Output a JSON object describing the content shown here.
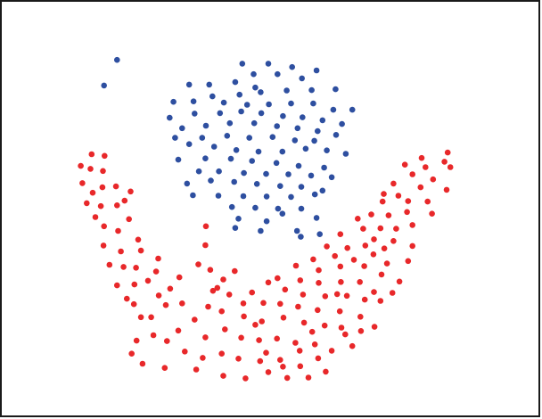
{
  "chart_data": {
    "type": "scatter",
    "title": "",
    "xlabel": "",
    "ylabel": "",
    "xlim": [
      0,
      100
    ],
    "ylim": [
      0,
      100
    ],
    "grid": false,
    "legend": "none",
    "series": [
      {
        "color": "#2e4fa0",
        "points": [
          [
            21.6,
            85.7
          ],
          [
            19.2,
            79.6
          ],
          [
            44.7,
            84.8
          ],
          [
            49.5,
            84.8
          ],
          [
            53.9,
            84.0
          ],
          [
            58.4,
            83.2
          ],
          [
            46.8,
            82.3
          ],
          [
            51.2,
            82.3
          ],
          [
            34.9,
            79.8
          ],
          [
            38.6,
            79.8
          ],
          [
            43.4,
            80.4
          ],
          [
            47.1,
            79.1
          ],
          [
            55.7,
            81.3
          ],
          [
            61.9,
            78.7
          ],
          [
            57.5,
            78.5
          ],
          [
            52.9,
            78.4
          ],
          [
            48.1,
            78.0
          ],
          [
            44.2,
            77.4
          ],
          [
            39.2,
            77.0
          ],
          [
            35.7,
            75.8
          ],
          [
            32.0,
            75.7
          ],
          [
            65.0,
            73.8
          ],
          [
            41.3,
            75.5
          ],
          [
            45.6,
            75.0
          ],
          [
            49.6,
            75.1
          ],
          [
            53.7,
            75.3
          ],
          [
            57.8,
            75.3
          ],
          [
            61.5,
            73.8
          ],
          [
            31.3,
            71.9
          ],
          [
            35.9,
            72.9
          ],
          [
            40.6,
            73.0
          ],
          [
            44.5,
            73.4
          ],
          [
            48.2,
            73.0
          ],
          [
            52.2,
            72.3
          ],
          [
            55.8,
            72.0
          ],
          [
            59.5,
            71.3
          ],
          [
            63.1,
            70.4
          ],
          [
            33.6,
            69.4
          ],
          [
            38.0,
            70.0
          ],
          [
            42.4,
            70.6
          ],
          [
            46.9,
            70.6
          ],
          [
            51.1,
            69.9
          ],
          [
            54.9,
            69.4
          ],
          [
            58.6,
            68.7
          ],
          [
            32.3,
            67.1
          ],
          [
            37.3,
            67.1
          ],
          [
            41.9,
            67.6
          ],
          [
            46.0,
            67.1
          ],
          [
            50.3,
            67.3
          ],
          [
            54.4,
            66.5
          ],
          [
            58.0,
            66.4
          ],
          [
            62.0,
            67.8
          ],
          [
            39.5,
            65.0
          ],
          [
            43.6,
            64.2
          ],
          [
            47.7,
            63.8
          ],
          [
            52.1,
            63.8
          ],
          [
            56.4,
            64.5
          ],
          [
            60.3,
            64.1
          ],
          [
            63.8,
            63.3
          ],
          [
            34.9,
            65.6
          ],
          [
            32.9,
            61.9
          ],
          [
            37.9,
            62.2
          ],
          [
            42.6,
            62.1
          ],
          [
            46.5,
            61.6
          ],
          [
            51.0,
            61.1
          ],
          [
            55.1,
            60.4
          ],
          [
            59.8,
            60.0
          ],
          [
            36.7,
            59.1
          ],
          [
            40.4,
            59.1
          ],
          [
            45.0,
            58.7
          ],
          [
            49.1,
            58.5
          ],
          [
            53.2,
            58.4
          ],
          [
            57.4,
            58.1
          ],
          [
            61.2,
            57.7
          ],
          [
            34.5,
            56.2
          ],
          [
            38.9,
            56.9
          ],
          [
            43.2,
            56.6
          ],
          [
            47.4,
            56.1
          ],
          [
            51.7,
            55.6
          ],
          [
            55.6,
            55.4
          ],
          [
            59.5,
            54.5
          ],
          [
            35.6,
            53.4
          ],
          [
            40.3,
            53.3
          ],
          [
            44.9,
            53.2
          ],
          [
            49.2,
            53.1
          ],
          [
            53.7,
            53.0
          ],
          [
            58.1,
            53.6
          ],
          [
            42.8,
            50.6
          ],
          [
            47.1,
            50.4
          ],
          [
            51.3,
            50.2
          ],
          [
            55.6,
            50.2
          ],
          [
            58.4,
            48.0
          ],
          [
            44.0,
            47.8
          ],
          [
            49.2,
            47.2
          ],
          [
            52.1,
            49.0
          ],
          [
            48.1,
            44.9
          ],
          [
            43.4,
            45.6
          ],
          [
            54.8,
            44.9
          ],
          [
            59.0,
            44.1
          ],
          [
            55.5,
            43.5
          ]
        ]
      },
      {
        "color": "#e8282a",
        "points": [
          [
            82.6,
            63.6
          ],
          [
            82.0,
            61.4
          ],
          [
            77.8,
            62.3
          ],
          [
            83.1,
            60.1
          ],
          [
            78.5,
            60.1
          ],
          [
            74.7,
            60.7
          ],
          [
            76.1,
            58.4
          ],
          [
            79.9,
            57.2
          ],
          [
            82.4,
            54.7
          ],
          [
            77.6,
            55.3
          ],
          [
            72.6,
            56.2
          ],
          [
            70.8,
            53.7
          ],
          [
            73.5,
            53.3
          ],
          [
            75.3,
            52.0
          ],
          [
            70.6,
            51.9
          ],
          [
            78.9,
            51.9
          ],
          [
            79.7,
            49.0
          ],
          [
            75.1,
            49.4
          ],
          [
            71.7,
            48.6
          ],
          [
            66.0,
            47.8
          ],
          [
            68.5,
            48.8
          ],
          [
            67.0,
            45.4
          ],
          [
            70.2,
            45.5
          ],
          [
            76.1,
            46.3
          ],
          [
            73.1,
            45.4
          ],
          [
            62.8,
            44.1
          ],
          [
            69.0,
            42.9
          ],
          [
            72.6,
            42.5
          ],
          [
            64.1,
            40.8
          ],
          [
            67.4,
            41.4
          ],
          [
            76.1,
            41.3
          ],
          [
            60.3,
            41.2
          ],
          [
            57.8,
            38.1
          ],
          [
            61.8,
            38.9
          ],
          [
            65.3,
            38.0
          ],
          [
            68.9,
            39.3
          ],
          [
            75.3,
            37.7
          ],
          [
            71.4,
            37.1
          ],
          [
            54.6,
            36.6
          ],
          [
            58.8,
            35.5
          ],
          [
            62.8,
            36.4
          ],
          [
            67.2,
            36.5
          ],
          [
            70.4,
            34.5
          ],
          [
            51.2,
            33.6
          ],
          [
            55.4,
            33.1
          ],
          [
            58.8,
            32.5
          ],
          [
            62.9,
            32.7
          ],
          [
            66.4,
            32.7
          ],
          [
            69.0,
            30.3
          ],
          [
            46.5,
            30.2
          ],
          [
            49.5,
            32.6
          ],
          [
            52.6,
            30.9
          ],
          [
            55.9,
            29.7
          ],
          [
            60.0,
            29.3
          ],
          [
            64.0,
            29.4
          ],
          [
            67.3,
            28.5
          ],
          [
            41.2,
            33.3
          ],
          [
            44.9,
            27.6
          ],
          [
            48.6,
            27.7
          ],
          [
            51.7,
            27.5
          ],
          [
            55.0,
            26.8
          ],
          [
            58.6,
            26.0
          ],
          [
            62.7,
            25.7
          ],
          [
            39.3,
            30.6
          ],
          [
            42.3,
            29.7
          ],
          [
            40.9,
            25.7
          ],
          [
            45.0,
            24.5
          ],
          [
            48.3,
            23.3
          ],
          [
            52.3,
            24.2
          ],
          [
            56.1,
            23.0
          ],
          [
            59.9,
            22.3
          ],
          [
            63.0,
            21.8
          ],
          [
            66.5,
            24.4
          ],
          [
            38.4,
            26.8
          ],
          [
            35.9,
            23.7
          ],
          [
            37.9,
            19.5
          ],
          [
            41.5,
            21.4
          ],
          [
            44.5,
            19.4
          ],
          [
            47.8,
            18.8
          ],
          [
            51.1,
            19.2
          ],
          [
            54.5,
            18.2
          ],
          [
            58.1,
            17.8
          ],
          [
            61.2,
            16.3
          ],
          [
            33.6,
            27.6
          ],
          [
            32.9,
            21.1
          ],
          [
            30.8,
            18.6
          ],
          [
            34.1,
            16.1
          ],
          [
            37.4,
            14.6
          ],
          [
            40.9,
            15.6
          ],
          [
            44.0,
            14.4
          ],
          [
            48.0,
            13.8
          ],
          [
            51.7,
            14.1
          ],
          [
            55.4,
            12.6
          ],
          [
            58.7,
            14.5
          ],
          [
            36.2,
            11.8
          ],
          [
            41.2,
            10.3
          ],
          [
            45.3,
            9.7
          ],
          [
            49.5,
            11.2
          ],
          [
            53.0,
            9.8
          ],
          [
            56.9,
            9.9
          ],
          [
            60.1,
            11.3
          ],
          [
            30.4,
            12.2
          ],
          [
            26.3,
            13.2
          ],
          [
            24.3,
            15.6
          ],
          [
            25.2,
            18.7
          ],
          [
            28.3,
            20.0
          ],
          [
            27.9,
            24.3
          ],
          [
            26.0,
            24.3
          ],
          [
            30.6,
            27.2
          ],
          [
            24.7,
            27.4
          ],
          [
            23.4,
            28.7
          ],
          [
            29.3,
            29.5
          ],
          [
            31.4,
            31.1
          ],
          [
            33.1,
            33.8
          ],
          [
            27.3,
            33.0
          ],
          [
            24.8,
            32.1
          ],
          [
            21.6,
            31.9
          ],
          [
            28.8,
            35.2
          ],
          [
            29.2,
            38.3
          ],
          [
            25.1,
            36.1
          ],
          [
            22.8,
            36.3
          ],
          [
            20.2,
            36.8
          ],
          [
            26.0,
            40.2
          ],
          [
            25.5,
            42.8
          ],
          [
            22.3,
            40.0
          ],
          [
            21.8,
            44.9
          ],
          [
            19.1,
            41.4
          ],
          [
            19.2,
            46.0
          ],
          [
            17.6,
            48.2
          ],
          [
            18.6,
            50.8
          ],
          [
            21.6,
            51.0
          ],
          [
            23.8,
            47.7
          ],
          [
            16.0,
            51.5
          ],
          [
            17.1,
            54.0
          ],
          [
            18.9,
            55.3
          ],
          [
            15.2,
            56.3
          ],
          [
            19.0,
            59.2
          ],
          [
            21.4,
            55.5
          ],
          [
            23.0,
            52.1
          ],
          [
            24.1,
            54.3
          ],
          [
            16.7,
            59.7
          ],
          [
            19.3,
            62.8
          ],
          [
            16.9,
            63.2
          ],
          [
            14.9,
            60.4
          ],
          [
            36.6,
            36.9
          ],
          [
            38.8,
            35.6
          ],
          [
            40.1,
            31.3
          ],
          [
            43.3,
            35.3
          ],
          [
            37.9,
            41.5
          ],
          [
            38.0,
            46.0
          ],
          [
            47.1,
            22.5
          ],
          [
            49.1,
            15.8
          ],
          [
            52.2,
            12.5
          ],
          [
            57.6,
            20.8
          ],
          [
            55.3,
            16.3
          ],
          [
            63.7,
            20.2
          ],
          [
            65.0,
            17.4
          ],
          [
            69.1,
            22.0
          ],
          [
            70.2,
            28.2
          ],
          [
            72.4,
            30.1
          ],
          [
            73.7,
            32.8
          ],
          [
            66.6,
            21.0
          ],
          [
            62.2,
            29.8
          ],
          [
            70.9,
            40.7
          ]
        ]
      }
    ]
  }
}
